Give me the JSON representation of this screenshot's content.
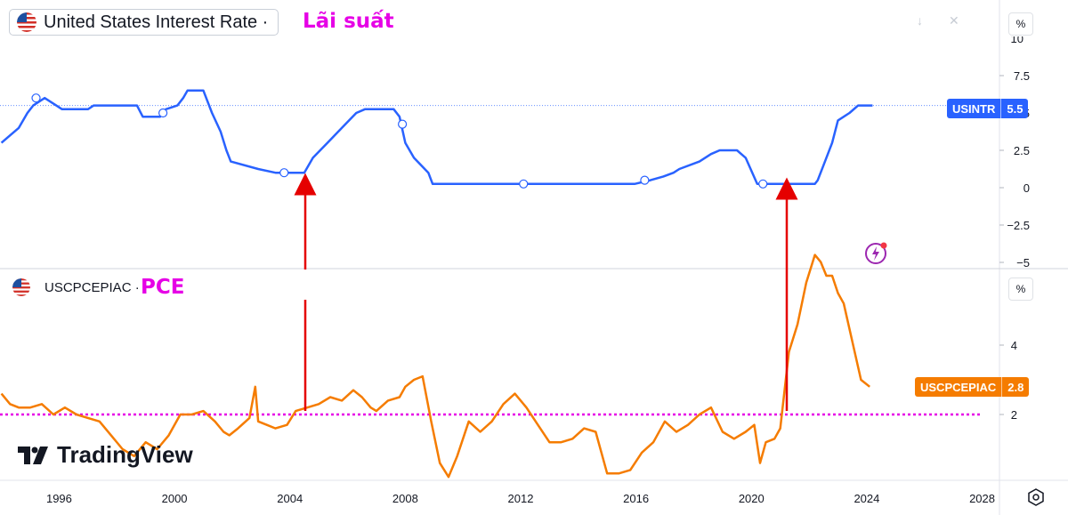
{
  "top_panel": {
    "title": "United States Interest Rate ·",
    "annotation": "Lãi suất",
    "unit": "%",
    "tag": {
      "label": "USINTR",
      "value": "5.5",
      "color": "#2962ff"
    },
    "y_ticks": [
      "7.5",
      "5",
      "2.5",
      "0",
      "−2.5",
      "−5"
    ]
  },
  "bottom_panel": {
    "title": "USCPCEPIAC ·",
    "annotation": "PCE",
    "unit": "%",
    "tag": {
      "label": "USCPCEPIAC",
      "value": "2.8",
      "color": "#f57c00"
    },
    "y_ticks": [
      "4",
      "2"
    ]
  },
  "x_ticks": [
    "1996",
    "2000",
    "2004",
    "2008",
    "2012",
    "2016",
    "2020",
    "2024",
    "2028"
  ],
  "logo": "TradingView",
  "icons": [
    "flag-us-icon",
    "arrow-down-icon",
    "close-icon",
    "lightning-icon",
    "settings-icon",
    "tradingview-logo-icon"
  ],
  "colors": {
    "rate_line": "#2962ff",
    "pce_line": "#f57c00",
    "target_line": "#e600e6",
    "arrow": "#e50000"
  },
  "chart_data": [
    {
      "type": "line",
      "title": "United States Interest Rate",
      "series": [
        {
          "name": "USINTR",
          "x": [
            1994.0,
            1994.3,
            1994.6,
            1994.9,
            1995.1,
            1995.5,
            1995.9,
            1996.1,
            1997.0,
            1997.2,
            1998.7,
            1998.9,
            1999.5,
            1999.7,
            2000.1,
            2000.3,
            2000.45,
            2001.0,
            2001.3,
            2001.6,
            2001.8,
            2001.95,
            2002.9,
            2003.5,
            2004.5,
            2004.8,
            2005.3,
            2005.8,
            2006.3,
            2006.6,
            2007.6,
            2007.8,
            2008.0,
            2008.3,
            2008.8,
            2008.95,
            2015.95,
            2016.5,
            2016.95,
            2017.3,
            2017.5,
            2018.2,
            2018.6,
            2018.9,
            2019.5,
            2019.65,
            2019.8,
            2020.2,
            2022.2,
            2022.3,
            2022.5,
            2022.8,
            2023.0,
            2023.4,
            2023.7,
            2024.2
          ],
          "y": [
            3.0,
            3.5,
            4.0,
            5.0,
            5.5,
            6.0,
            5.5,
            5.25,
            5.25,
            5.5,
            5.5,
            4.75,
            4.75,
            5.25,
            5.5,
            6.0,
            6.5,
            6.5,
            5.0,
            3.75,
            2.5,
            1.75,
            1.25,
            1.0,
            1.0,
            2.0,
            3.0,
            4.0,
            5.0,
            5.25,
            5.25,
            4.75,
            3.0,
            2.0,
            1.0,
            0.25,
            0.25,
            0.5,
            0.75,
            1.0,
            1.25,
            1.75,
            2.25,
            2.5,
            2.5,
            2.25,
            2.0,
            0.25,
            0.25,
            0.5,
            1.5,
            3.0,
            4.5,
            5.0,
            5.5,
            5.5
          ]
        }
      ],
      "points": {
        "x": [
          1995.2,
          1999.6,
          2003.8,
          2007.9,
          2012.1,
          2016.3,
          2020.4
        ],
        "y": [
          6.0,
          5.0,
          1.0,
          4.25,
          0.25,
          0.5,
          0.25
        ]
      },
      "ylim": [
        -5,
        10
      ],
      "xlim": [
        1993.95,
        2028.6
      ],
      "grid": false
    },
    {
      "type": "line",
      "title": "USCPCEPIAC",
      "series": [
        {
          "name": "USCPCEPIAC",
          "x": [
            1994.0,
            1994.3,
            1994.6,
            1995.0,
            1995.4,
            1995.8,
            1996.2,
            1996.6,
            1997.0,
            1997.4,
            1997.8,
            1998.2,
            1998.6,
            1999.0,
            1999.4,
            1999.8,
            2000.2,
            2000.6,
            2001.0,
            2001.4,
            2001.7,
            2001.9,
            2002.2,
            2002.6,
            2002.8,
            2002.9,
            2003.2,
            2003.5,
            2003.9,
            2004.2,
            2004.6,
            2005.0,
            2005.4,
            2005.8,
            2006.2,
            2006.5,
            2006.8,
            2007.0,
            2007.4,
            2007.8,
            2008.0,
            2008.3,
            2008.6,
            2008.9,
            2009.2,
            2009.5,
            2009.8,
            2010.2,
            2010.6,
            2011.0,
            2011.4,
            2011.8,
            2012.2,
            2012.6,
            2013.0,
            2013.4,
            2013.8,
            2014.2,
            2014.6,
            2015.0,
            2015.4,
            2015.8,
            2016.2,
            2016.6,
            2017.0,
            2017.4,
            2017.8,
            2018.2,
            2018.6,
            2019.0,
            2019.4,
            2019.8,
            2020.1,
            2020.3,
            2020.5,
            2020.8,
            2021.0,
            2021.3,
            2021.6,
            2021.9,
            2022.2,
            2022.4,
            2022.6,
            2022.8,
            2023.0,
            2023.2,
            2023.5,
            2023.8,
            2024.1
          ],
          "y": [
            2.6,
            2.3,
            2.2,
            2.2,
            2.3,
            2.0,
            2.2,
            2.0,
            1.9,
            1.8,
            1.4,
            1.0,
            0.8,
            1.2,
            1.0,
            1.4,
            2.0,
            2.0,
            2.1,
            1.8,
            1.5,
            1.4,
            1.6,
            1.9,
            2.8,
            1.8,
            1.7,
            1.6,
            1.7,
            2.1,
            2.2,
            2.3,
            2.5,
            2.4,
            2.7,
            2.5,
            2.2,
            2.1,
            2.4,
            2.5,
            2.8,
            3.0,
            3.1,
            1.8,
            0.6,
            0.2,
            0.8,
            1.8,
            1.5,
            1.8,
            2.3,
            2.6,
            2.2,
            1.7,
            1.2,
            1.2,
            1.3,
            1.6,
            1.5,
            0.3,
            0.3,
            0.4,
            0.9,
            1.2,
            1.8,
            1.5,
            1.7,
            2.0,
            2.2,
            1.5,
            1.3,
            1.5,
            1.7,
            0.6,
            1.2,
            1.3,
            1.6,
            3.8,
            4.6,
            5.8,
            6.6,
            6.4,
            6.0,
            6.0,
            5.5,
            5.2,
            4.1,
            3.0,
            2.8
          ]
        }
      ],
      "target_line": 2.0,
      "ylim": [
        0,
        7
      ],
      "xlim": [
        1993.95,
        2028.6
      ],
      "grid": false
    }
  ]
}
